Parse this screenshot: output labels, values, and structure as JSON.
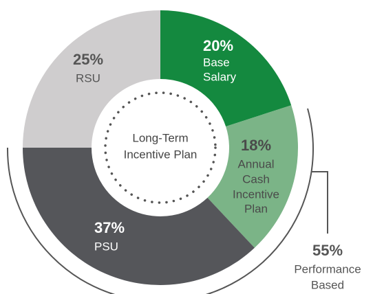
{
  "chart_data": {
    "type": "donut",
    "center_label": [
      "Long-Term",
      "Incentive Plan"
    ],
    "categories": [
      [
        "Base",
        "Salary"
      ],
      [
        "Annual",
        "Cash",
        "Incentive",
        "Plan"
      ],
      [
        "PSU"
      ],
      [
        "RSU"
      ]
    ],
    "values": [
      20,
      18,
      37,
      25
    ],
    "value_labels": [
      "20%",
      "18%",
      "37%",
      "25%"
    ],
    "colors": [
      "#14893f",
      "#7bb487",
      "#55565a",
      "#cfcdce"
    ],
    "annotation": {
      "value": 55,
      "value_label": "55%",
      "text": [
        "Performance",
        "Based"
      ]
    }
  }
}
